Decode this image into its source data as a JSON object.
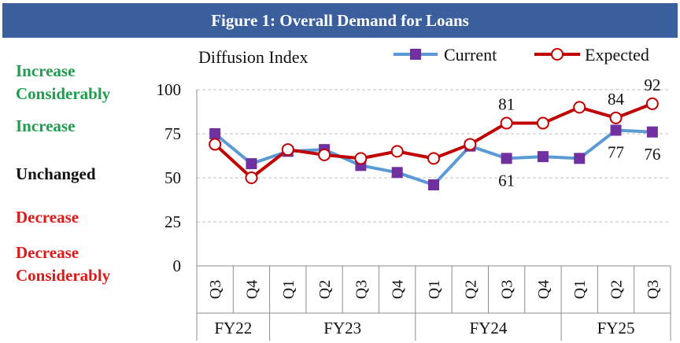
{
  "header": {
    "title": "Figure 1: Overall Demand for Loans"
  },
  "categories_scale": [
    {
      "line1": "Increase",
      "line2": "Considerably",
      "tone": "inc"
    },
    {
      "line1": "Increase",
      "line2": "",
      "tone": "inc"
    },
    {
      "line1": "Unchanged",
      "line2": "",
      "tone": "unc"
    },
    {
      "line1": "Decrease",
      "line2": "",
      "tone": "dec"
    },
    {
      "line1": "Decrease",
      "line2": "Considerably",
      "tone": "dec"
    }
  ],
  "colors": {
    "current": "#5b9bd5",
    "current_marker": "#7030a0",
    "expected": "#c00000",
    "grid": "#bfbfbf"
  },
  "chart_data": {
    "type": "line",
    "ylabel": "Diffusion Index",
    "ylim": [
      0,
      100
    ],
    "yticks": [
      0,
      25,
      50,
      75,
      100
    ],
    "grid": true,
    "legend_position": "top-right",
    "categories": [
      "Q3",
      "Q4",
      "Q1",
      "Q2",
      "Q3",
      "Q4",
      "Q1",
      "Q2",
      "Q3",
      "Q4",
      "Q1",
      "Q2",
      "Q3"
    ],
    "groups": [
      {
        "label": "FY22",
        "span": 2
      },
      {
        "label": "FY23",
        "span": 4
      },
      {
        "label": "FY24",
        "span": 4
      },
      {
        "label": "FY25",
        "span": 3
      }
    ],
    "series": [
      {
        "name": "Current",
        "values": [
          75,
          58,
          65,
          66,
          57,
          53,
          46,
          68,
          61,
          62,
          61,
          77,
          76
        ]
      },
      {
        "name": "Expected",
        "values": [
          69,
          50,
          66,
          63,
          61,
          65,
          61,
          69,
          81,
          81,
          90,
          84,
          92
        ]
      }
    ],
    "data_labels": [
      {
        "series": 1,
        "index": 8,
        "text": "81",
        "pos": "above"
      },
      {
        "series": 1,
        "index": 11,
        "text": "84",
        "pos": "above"
      },
      {
        "series": 1,
        "index": 12,
        "text": "92",
        "pos": "above"
      },
      {
        "series": 0,
        "index": 8,
        "text": "61",
        "pos": "below"
      },
      {
        "series": 0,
        "index": 11,
        "text": "77",
        "pos": "below"
      },
      {
        "series": 0,
        "index": 12,
        "text": "76",
        "pos": "below"
      }
    ]
  }
}
